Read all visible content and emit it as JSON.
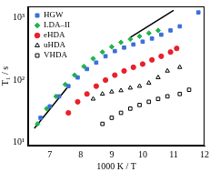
{
  "chart_data": {
    "type": "scatter",
    "x_label": "1000 K / T",
    "y_label": "T₁ / s",
    "log": "y",
    "grid": false,
    "legend": "top-left",
    "xlim": [
      6.3,
      12
    ],
    "xticks": [
      7,
      8,
      9,
      10,
      11,
      12
    ],
    "ylim": [
      9,
      1500
    ],
    "yticks": [
      {
        "value": 10,
        "label": "10¹"
      },
      {
        "value": 100,
        "label": "10²"
      },
      {
        "value": 1000,
        "label": "10³"
      }
    ],
    "series": [
      {
        "name": "HGW",
        "color": "#3b6fd8",
        "marker": "square",
        "x": [
          6.7,
          7.0,
          7.3,
          7.6,
          7.9,
          8.2,
          8.5,
          8.8,
          9.1,
          9.4,
          9.7,
          10.0,
          10.3,
          10.6,
          10.9,
          11.2,
          11.8
        ],
        "values": [
          25,
          38,
          55,
          80,
          110,
          150,
          190,
          240,
          290,
          330,
          370,
          410,
          460,
          530,
          620,
          720,
          1200
        ]
      },
      {
        "name": "LDA–II",
        "color": "#22b24c",
        "marker": "diamond",
        "x": [
          6.6,
          6.9,
          7.2,
          7.5,
          7.8,
          8.1,
          8.4,
          8.7,
          9.0,
          9.3,
          9.6,
          9.9,
          10.2,
          10.5
        ],
        "values": [
          20,
          35,
          55,
          85,
          120,
          165,
          220,
          280,
          340,
          400,
          450,
          500,
          560,
          620
        ]
      },
      {
        "name": "eHDA",
        "color": "#e8202a",
        "marker": "circle",
        "x": [
          7.6,
          7.9,
          8.2,
          8.5,
          8.8,
          9.1,
          9.4,
          9.7,
          10.0,
          10.3,
          10.6,
          10.9,
          11.1
        ],
        "values": [
          30,
          45,
          60,
          80,
          100,
          120,
          140,
          160,
          180,
          210,
          240,
          280,
          320
        ]
      },
      {
        "name": "uHDA",
        "color": "#000000",
        "marker": "open_triangle",
        "x": [
          8.4,
          8.7,
          9.0,
          9.3,
          9.6,
          9.9,
          10.2,
          10.5,
          10.8,
          11.2
        ],
        "values": [
          50,
          60,
          65,
          68,
          75,
          80,
          90,
          110,
          140,
          160
        ]
      },
      {
        "name": "VHDA",
        "color": "#000000",
        "marker": "open_square",
        "x": [
          8.7,
          9.0,
          9.3,
          9.6,
          9.9,
          10.2,
          10.5,
          10.8,
          11.2,
          11.5
        ],
        "values": [
          20,
          25,
          30,
          35,
          40,
          45,
          50,
          55,
          60,
          70
        ]
      }
    ],
    "guide_lines": [
      {
        "color": "#000000",
        "x": [
          6.5,
          7.6
        ],
        "values": [
          17,
          80
        ]
      },
      {
        "color": "#000000",
        "x": [
          9.6,
          11.0
        ],
        "values": [
          480,
          1300
        ]
      }
    ]
  }
}
